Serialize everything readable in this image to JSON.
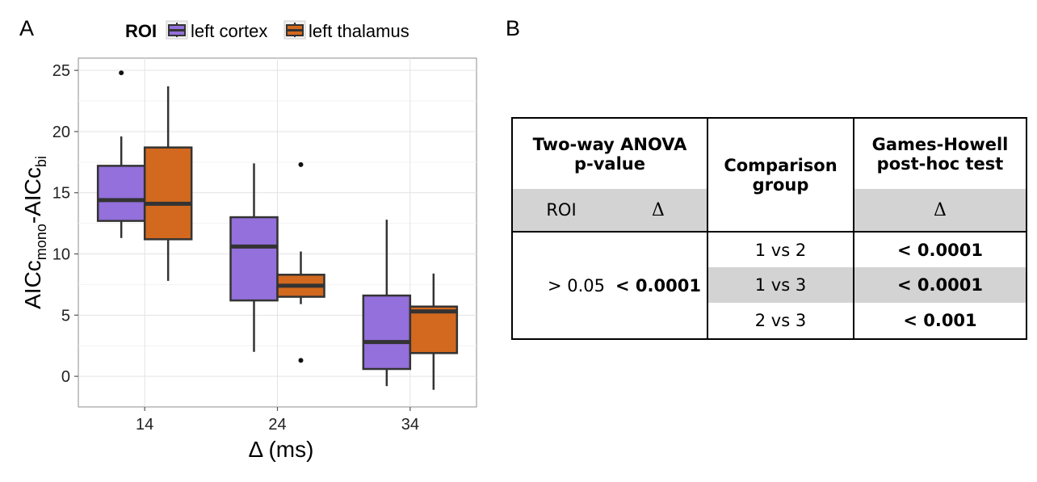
{
  "panel_labels": {
    "a": "A",
    "b": "B"
  },
  "chart_data": {
    "type": "box",
    "legend": {
      "title": "ROI",
      "position": "top",
      "entries": [
        "left cortex",
        "left thalamus"
      ]
    },
    "colors": {
      "left cortex": "#9370db",
      "left thalamus": "#d2691e"
    },
    "xlabel": "Δ  (ms)",
    "ylabel_parts": {
      "base1": "AICc",
      "sub1": "mono",
      "dash": "-",
      "base2": "AICc",
      "sub2": "bi"
    },
    "categories": [
      "14",
      "24",
      "34"
    ],
    "ylim": [
      -2.5,
      26
    ],
    "yticks": [
      "0",
      "5",
      "10",
      "15",
      "20",
      "25"
    ],
    "series": [
      {
        "name": "left cortex",
        "boxes": [
          {
            "category": "14",
            "lower": 11.3,
            "q1": 12.7,
            "median": 14.4,
            "q3": 17.2,
            "upper": 19.6,
            "outliers": [
              24.8
            ]
          },
          {
            "category": "24",
            "lower": 2.0,
            "q1": 6.2,
            "median": 10.6,
            "q3": 13.0,
            "upper": 17.4,
            "outliers": []
          },
          {
            "category": "34",
            "lower": -0.8,
            "q1": 0.6,
            "median": 2.8,
            "q3": 6.6,
            "upper": 12.8,
            "outliers": []
          }
        ]
      },
      {
        "name": "left thalamus",
        "boxes": [
          {
            "category": "14",
            "lower": 7.8,
            "q1": 11.2,
            "median": 14.1,
            "q3": 18.7,
            "upper": 23.7,
            "outliers": []
          },
          {
            "category": "24",
            "lower": 5.9,
            "q1": 6.5,
            "median": 7.4,
            "q3": 8.3,
            "upper": 10.2,
            "outliers": [
              17.3,
              1.3
            ]
          },
          {
            "category": "34",
            "lower": -1.1,
            "q1": 1.9,
            "median": 5.3,
            "q3": 5.7,
            "upper": 8.4,
            "outliers": []
          }
        ]
      }
    ]
  },
  "table": {
    "header_anova_line1": "Two-way ANOVA",
    "header_anova_line2": "p-value",
    "header_comparison_line1": "Comparison",
    "header_comparison_line2": "group",
    "header_gh_line1": "Games-Howell",
    "header_gh_line2": "post-hoc test",
    "sub_roi": "ROI",
    "sub_delta": "Δ",
    "sub_gh_delta": "Δ",
    "anova_roi_value": "> 0.05",
    "anova_delta_value": "< 0.0001",
    "rows": [
      {
        "group": "1 vs 2",
        "p": "< 0.0001"
      },
      {
        "group": "1 vs 3",
        "p": "< 0.0001"
      },
      {
        "group": "2 vs 3",
        "p": "< 0.001"
      }
    ]
  }
}
